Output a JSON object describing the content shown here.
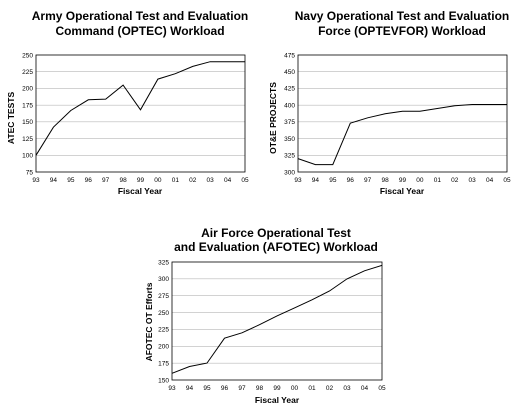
{
  "chart_data": [
    {
      "type": "line",
      "title_lines": [
        "Army Operational Test and Evaluation",
        "Command (OPTEC) Workload"
      ],
      "xlabel": "Fiscal Year",
      "ylabel": "ATEC TESTS",
      "categories": [
        "93",
        "94",
        "95",
        "96",
        "97",
        "98",
        "99",
        "00",
        "01",
        "02",
        "03",
        "04",
        "05"
      ],
      "yticks": [
        75,
        100,
        125,
        150,
        175,
        200,
        225,
        250
      ],
      "ylim": [
        75,
        250
      ],
      "grid": true,
      "series": [
        {
          "values": [
            100,
            142,
            167,
            183,
            184,
            205,
            168,
            214,
            222,
            233,
            240,
            240,
            240
          ]
        }
      ]
    },
    {
      "type": "line",
      "title_lines": [
        "Navy Operational Test and Evaluation",
        "Force (OPTEVFOR) Workload"
      ],
      "xlabel": "Fiscal Year",
      "ylabel": "OT&E PROJECTS",
      "categories": [
        "93",
        "94",
        "95",
        "96",
        "97",
        "98",
        "99",
        "00",
        "01",
        "02",
        "03",
        "04",
        "05"
      ],
      "yticks": [
        300,
        325,
        350,
        375,
        400,
        425,
        450,
        475
      ],
      "ylim": [
        300,
        475
      ],
      "grid": true,
      "series": [
        {
          "values": [
            320,
            311,
            311,
            373,
            381,
            387,
            391,
            391,
            395,
            399,
            401,
            401,
            401
          ]
        }
      ]
    },
    {
      "type": "line",
      "title_lines": [
        "Air Force Operational Test",
        "and Evaluation (AFOTEC) Workload"
      ],
      "xlabel": "Fiscal Year",
      "ylabel": "AFOTEC OT Efforts",
      "categories": [
        "93",
        "94",
        "95",
        "96",
        "97",
        "98",
        "99",
        "00",
        "01",
        "02",
        "03",
        "04",
        "05"
      ],
      "yticks": [
        150,
        175,
        200,
        225,
        250,
        275,
        300,
        325
      ],
      "ylim": [
        150,
        325
      ],
      "grid": true,
      "series": [
        {
          "values": [
            160,
            170,
            175,
            212,
            220,
            232,
            245,
            257,
            269,
            282,
            300,
            312,
            320
          ]
        }
      ]
    }
  ]
}
